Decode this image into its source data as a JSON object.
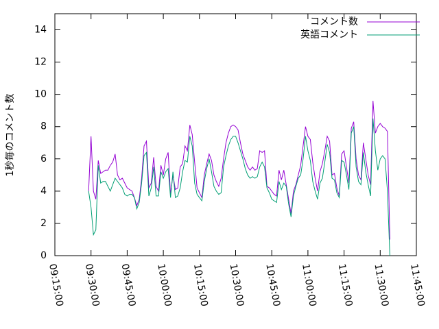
{
  "chart_data": {
    "type": "line",
    "y_label": "1秒毎のコメント数",
    "x": [
      "09:29:00",
      "09:30:00",
      "09:31:00",
      "09:32:00",
      "09:33:00",
      "09:34:00",
      "09:35:00",
      "09:36:00",
      "09:37:00",
      "09:38:00",
      "09:39:00",
      "09:40:00",
      "09:41:00",
      "09:42:00",
      "09:43:00",
      "09:44:00",
      "09:45:00",
      "09:46:00",
      "09:47:00",
      "09:48:00",
      "09:49:00",
      "09:50:00",
      "09:51:00",
      "09:52:00",
      "09:53:00",
      "09:54:00",
      "09:55:00",
      "09:56:00",
      "09:57:00",
      "09:58:00",
      "09:59:00",
      "10:00:00",
      "10:01:00",
      "10:02:00",
      "10:03:00",
      "10:04:00",
      "10:05:00",
      "10:06:00",
      "10:07:00",
      "10:08:00",
      "10:09:00",
      "10:10:00",
      "10:11:00",
      "10:12:00",
      "10:13:00",
      "10:14:00",
      "10:15:00",
      "10:16:00",
      "10:17:00",
      "10:18:00",
      "10:19:00",
      "10:20:00",
      "10:21:00",
      "10:22:00",
      "10:23:00",
      "10:24:00",
      "10:25:00",
      "10:26:00",
      "10:27:00",
      "10:28:00",
      "10:29:00",
      "10:30:00",
      "10:31:00",
      "10:32:00",
      "10:33:00",
      "10:34:00",
      "10:35:00",
      "10:36:00",
      "10:37:00",
      "10:38:00",
      "10:39:00",
      "10:40:00",
      "10:41:00",
      "10:42:00",
      "10:43:00",
      "10:44:00",
      "10:45:00",
      "10:46:00",
      "10:47:00",
      "10:48:00",
      "10:49:00",
      "10:50:00",
      "10:51:00",
      "10:52:00",
      "10:53:00",
      "10:54:00",
      "10:55:00",
      "10:56:00",
      "10:57:00",
      "10:58:00",
      "10:59:00",
      "11:00:00",
      "11:01:00",
      "11:02:00",
      "11:03:00",
      "11:04:00",
      "11:05:00",
      "11:06:00",
      "11:07:00",
      "11:08:00",
      "11:09:00",
      "11:10:00",
      "11:11:00",
      "11:12:00",
      "11:13:00",
      "11:14:00",
      "11:15:00",
      "11:16:00",
      "11:17:00",
      "11:18:00",
      "11:19:00",
      "11:20:00",
      "11:21:00",
      "11:22:00",
      "11:23:00",
      "11:24:00",
      "11:25:00",
      "11:26:00",
      "11:27:00",
      "11:28:00",
      "11:29:00",
      "11:30:00",
      "11:31:00",
      "11:32:00",
      "11:33:00",
      "11:34:00"
    ],
    "series": [
      {
        "name": "コメント数",
        "color": "#9400d3",
        "values": [
          4.0,
          7.4,
          4.0,
          3.5,
          5.9,
          5.1,
          5.2,
          5.3,
          5.3,
          5.6,
          5.8,
          6.3,
          5.0,
          4.7,
          4.8,
          4.5,
          4.2,
          4.1,
          4.0,
          3.6,
          3.1,
          3.5,
          4.8,
          6.8,
          7.1,
          4.2,
          4.5,
          6.1,
          4.3,
          4.0,
          5.6,
          5.0,
          6.0,
          6.4,
          3.8,
          5.0,
          4.1,
          4.2,
          5.5,
          5.7,
          6.8,
          6.5,
          8.1,
          7.5,
          5.8,
          4.2,
          3.9,
          3.6,
          5.0,
          5.7,
          6.3,
          5.9,
          5.0,
          4.6,
          4.3,
          4.8,
          6.0,
          7.0,
          7.6,
          8.0,
          8.1,
          8.0,
          7.8,
          7.0,
          6.3,
          5.9,
          5.5,
          5.3,
          5.5,
          5.3,
          5.4,
          6.5,
          6.4,
          6.5,
          4.3,
          4.2,
          4.0,
          3.8,
          3.7,
          5.3,
          4.7,
          5.3,
          4.4,
          3.5,
          2.6,
          4.0,
          4.4,
          5.0,
          5.6,
          6.8,
          8.0,
          7.4,
          7.2,
          5.8,
          4.8,
          4.0,
          5.2,
          5.7,
          6.5,
          7.4,
          7.1,
          5.0,
          5.1,
          4.2,
          3.7,
          6.3,
          6.5,
          5.5,
          4.5,
          7.9,
          8.3,
          6.0,
          5.0,
          4.7,
          7.0,
          6.0,
          5.0,
          4.4,
          9.6,
          7.6,
          8.0,
          8.2,
          8.0,
          7.9,
          7.7,
          1.0
        ]
      },
      {
        "name": "英語コメント",
        "color": "#009e73",
        "values": [
          4.0,
          3.0,
          1.3,
          1.6,
          5.6,
          4.5,
          4.6,
          4.6,
          4.3,
          4.0,
          4.4,
          4.8,
          4.6,
          4.4,
          4.2,
          3.8,
          3.7,
          3.8,
          3.8,
          3.6,
          2.9,
          3.3,
          4.5,
          6.2,
          6.4,
          3.7,
          4.2,
          5.5,
          3.7,
          3.7,
          5.2,
          4.8,
          5.2,
          5.4,
          3.6,
          5.2,
          3.6,
          3.7,
          4.2,
          5.2,
          5.9,
          5.8,
          7.4,
          6.8,
          4.5,
          3.8,
          3.6,
          3.4,
          4.6,
          5.4,
          6.0,
          5.2,
          4.3,
          4.0,
          3.8,
          3.9,
          5.5,
          6.2,
          6.8,
          7.2,
          7.4,
          7.4,
          7.0,
          6.5,
          6.0,
          5.4,
          5.0,
          4.8,
          4.9,
          4.8,
          4.9,
          5.5,
          5.8,
          5.5,
          4.2,
          3.9,
          3.5,
          3.4,
          3.3,
          4.6,
          4.1,
          4.5,
          4.3,
          3.2,
          2.4,
          3.7,
          4.3,
          4.8,
          5.0,
          6.0,
          7.4,
          6.5,
          5.9,
          4.6,
          4.0,
          3.5,
          4.5,
          4.8,
          5.8,
          6.9,
          6.4,
          4.8,
          4.7,
          3.9,
          3.6,
          5.9,
          5.8,
          5.0,
          4.1,
          7.6,
          8.0,
          5.5,
          4.6,
          4.4,
          6.4,
          5.2,
          4.4,
          3.7,
          8.5,
          6.5,
          5.3,
          6.0,
          6.2,
          6.0,
          4.0,
          0.0
        ]
      }
    ],
    "xlim": [
      "09:15:00",
      "11:45:00"
    ],
    "xticks": [
      "09:15:00",
      "09:30:00",
      "09:45:00",
      "10:00:00",
      "10:15:00",
      "10:30:00",
      "10:45:00",
      "11:00:00",
      "11:15:00",
      "11:30:00",
      "11:45:00"
    ],
    "ylim": [
      0,
      15
    ],
    "yticks": [
      0,
      2,
      4,
      6,
      8,
      10,
      12,
      14
    ],
    "legend": "top-right"
  }
}
